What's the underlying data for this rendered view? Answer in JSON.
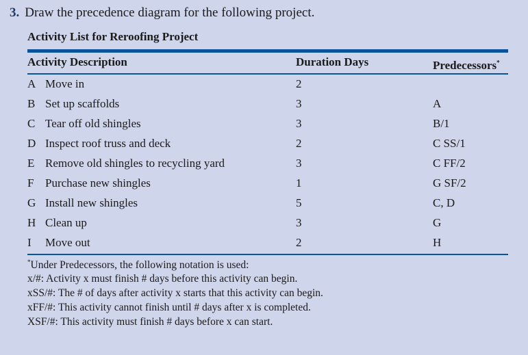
{
  "question": {
    "number": "3.",
    "text": "Draw the precedence diagram for the following project."
  },
  "table_title": "Activity List for Reroofing Project",
  "headers": {
    "description": "Activity Description",
    "duration": "Duration Days",
    "predecessors": "Predecessors",
    "pred_mark": "*"
  },
  "rows": [
    {
      "id": "A",
      "desc": "Move in",
      "duration": "2",
      "pred": ""
    },
    {
      "id": "B",
      "desc": "Set up scaffolds",
      "duration": "3",
      "pred": "A"
    },
    {
      "id": "C",
      "desc": "Tear off old shingles",
      "duration": "3",
      "pred": "B/1"
    },
    {
      "id": "D",
      "desc": "Inspect roof truss and deck",
      "duration": "2",
      "pred": "C SS/1"
    },
    {
      "id": "E",
      "desc": "Remove old shingles to recycling yard",
      "duration": "3",
      "pred": "C FF/2"
    },
    {
      "id": "F",
      "desc": "Purchase new shingles",
      "duration": "1",
      "pred": "G SF/2"
    },
    {
      "id": "G",
      "desc": "Install new shingles",
      "duration": "5",
      "pred": "C, D"
    },
    {
      "id": "H",
      "desc": "Clean up",
      "duration": "3",
      "pred": "G"
    },
    {
      "id": "I",
      "desc": "Move out",
      "duration": "2",
      "pred": "H"
    }
  ],
  "footnote": {
    "mark": "*",
    "lines": [
      "Under Predecessors, the following notation is used:",
      "x/#: Activity x must finish # days before this activity can begin.",
      "xSS/#: The # of days after activity x starts that this activity can begin.",
      "xFF/#: This activity cannot finish until # days after x is completed.",
      "XSF/#: This activity must finish # days before x can start."
    ]
  },
  "colors": {
    "background": "#cfd5ea",
    "rule": "#0a539b"
  }
}
